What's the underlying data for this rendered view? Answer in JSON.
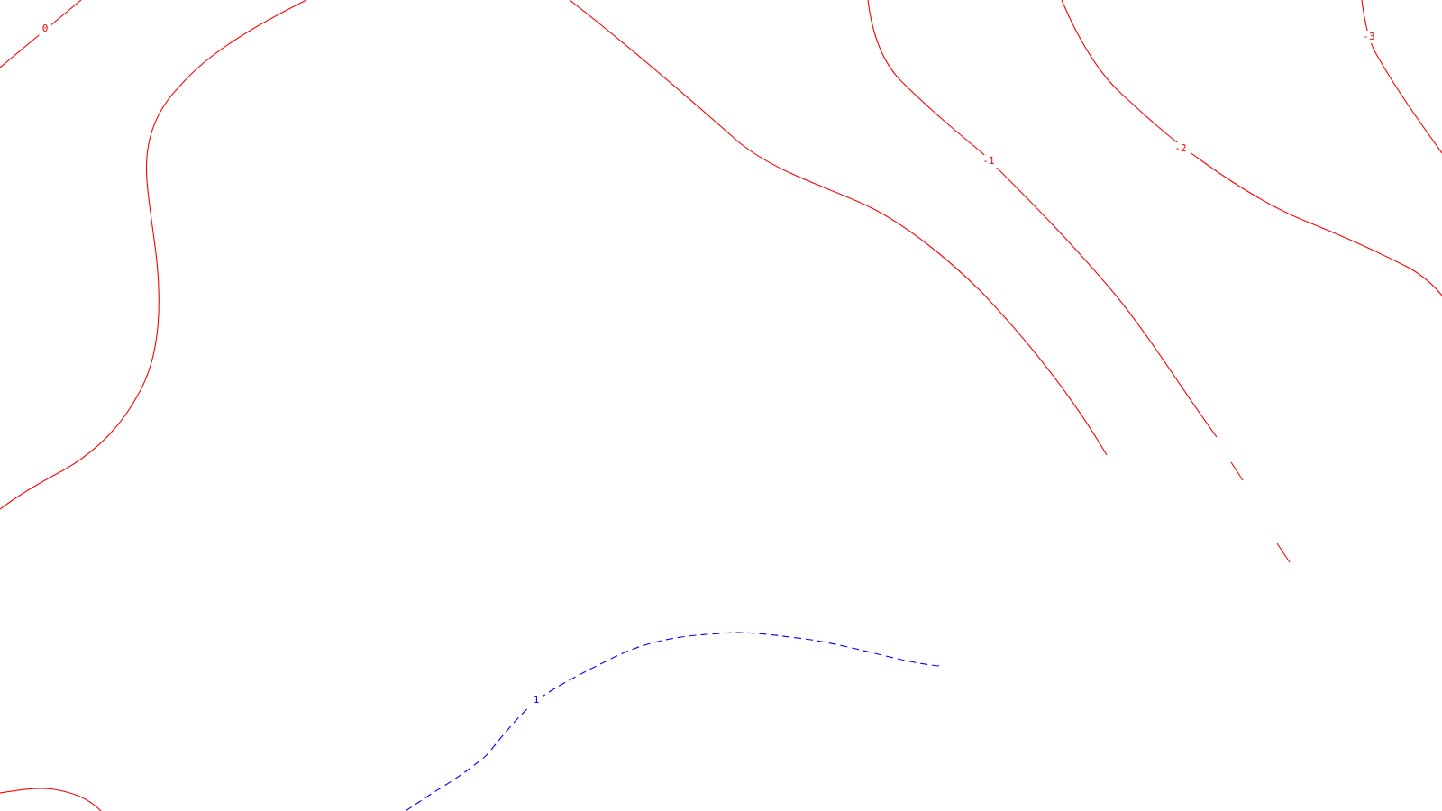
{
  "map": {
    "colors": {
      "background": "#ffffff",
      "negative_contour": "#ff0000",
      "positive_contour": "#0000ff"
    },
    "contours": [
      {
        "id": "contour-0-top-left",
        "level": "0",
        "style": "solid",
        "color": "#ff0000"
      },
      {
        "id": "contour-0-main",
        "level": "0",
        "style": "solid",
        "color": "#ff0000"
      },
      {
        "id": "contour-0-bottom-left",
        "level": "0",
        "style": "solid",
        "color": "#ff0000"
      },
      {
        "id": "contour-neg1",
        "level": "-1",
        "style": "solid",
        "color": "#ff0000"
      },
      {
        "id": "contour-neg2",
        "level": "-2",
        "style": "solid",
        "color": "#ff0000"
      },
      {
        "id": "contour-neg3",
        "level": "-3",
        "style": "solid",
        "color": "#ff0000"
      },
      {
        "id": "contour-pos1",
        "level": "1",
        "style": "dashed",
        "color": "#0000ff"
      }
    ],
    "labels": {
      "zero": "0",
      "neg1": "-1",
      "neg2": "-2",
      "neg3": "-3",
      "pos1": "1"
    }
  }
}
